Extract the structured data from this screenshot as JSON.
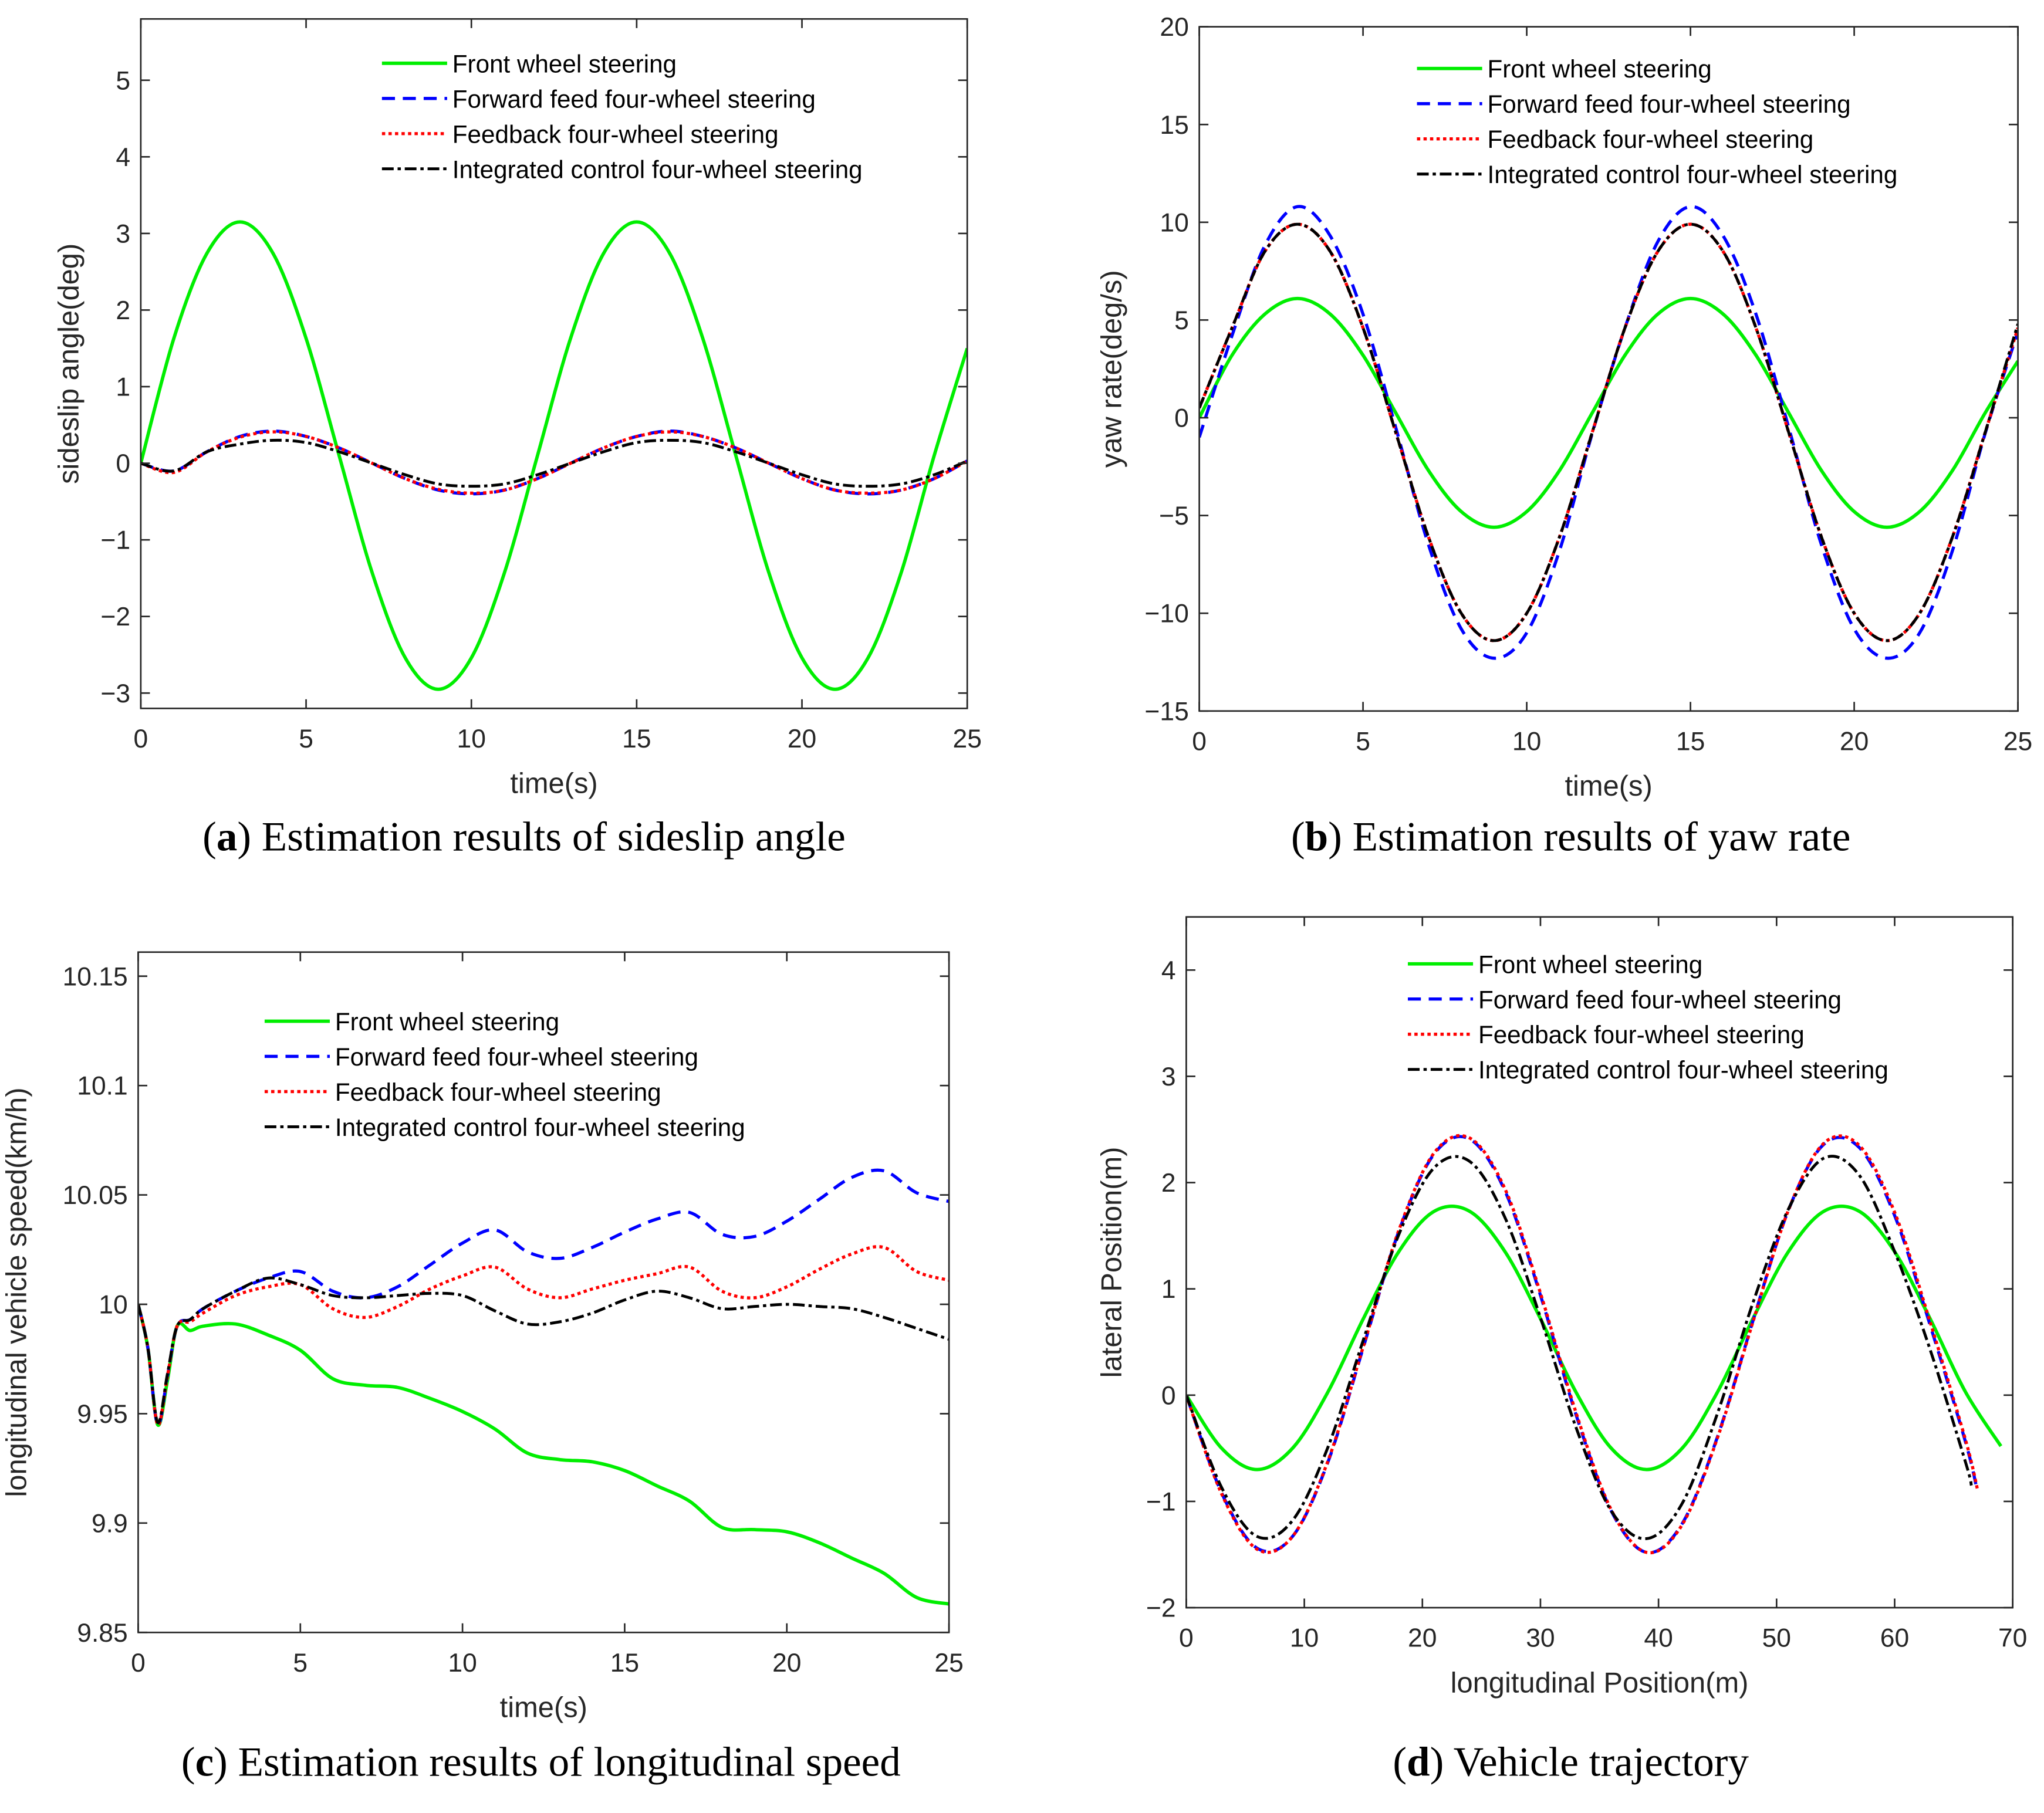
{
  "colors": {
    "front": "#00ee00",
    "forward": "#0000ff",
    "feedback": "#ff0000",
    "integrated": "#000000",
    "axis": "#262626"
  },
  "legend_labels": [
    "Front wheel steering",
    "Forward feed four-wheel steering",
    "Feedback four-wheel steering",
    "Integrated control four-wheel steering"
  ],
  "chart_data": [
    {
      "type": "line",
      "panel": "a",
      "caption_letter": "a",
      "caption": " Estimation results of sideslip angle",
      "xlabel": "time(s)",
      "ylabel": "sideslip angle(deg)",
      "xlim": [
        0,
        25
      ],
      "ylim": [
        -3.2,
        5.8
      ],
      "xticks": [
        0,
        5,
        10,
        15,
        20,
        25
      ],
      "xtick_labels": [
        "0",
        "5",
        "10",
        "15",
        "20",
        "25"
      ],
      "yticks": [
        -3,
        -2,
        -1,
        0,
        1,
        2,
        3,
        4,
        5
      ],
      "ytick_labels": [
        "−3",
        "−2",
        "−1",
        "0",
        "1",
        "2",
        "3",
        "4",
        "5"
      ],
      "legend": "top-right",
      "x": [
        0,
        1,
        2,
        3,
        4,
        5,
        6,
        7,
        8,
        9,
        10,
        11,
        12,
        13,
        14,
        15,
        16,
        17,
        18,
        19,
        20,
        21,
        22,
        23,
        24,
        25
      ],
      "series": [
        {
          "name": "Front wheel steering",
          "style": "solid",
          "values": [
            0,
            1.63,
            2.74,
            3.15,
            2.74,
            1.63,
            0.1,
            -1.43,
            -2.54,
            -2.95,
            -2.54,
            -1.43,
            0.1,
            1.63,
            2.74,
            3.15,
            2.74,
            1.63,
            0.1,
            -1.43,
            -2.54,
            -2.95,
            -2.54,
            -1.43,
            0.1,
            1.5
          ]
        },
        {
          "name": "Forward feed four-wheel steering",
          "style": "dashed",
          "values": [
            0,
            -0.1,
            0.15,
            0.35,
            0.42,
            0.35,
            0.2,
            0,
            -0.2,
            -0.35,
            -0.4,
            -0.35,
            -0.2,
            0,
            0.2,
            0.35,
            0.42,
            0.35,
            0.2,
            0,
            -0.2,
            -0.35,
            -0.4,
            -0.35,
            -0.2,
            0.03
          ]
        },
        {
          "name": "Feedback four-wheel steering",
          "style": "dotted",
          "values": [
            0,
            -0.12,
            0.15,
            0.34,
            0.41,
            0.35,
            0.2,
            0,
            -0.2,
            -0.34,
            -0.39,
            -0.35,
            -0.2,
            0,
            0.2,
            0.35,
            0.41,
            0.35,
            0.2,
            0,
            -0.2,
            -0.35,
            -0.39,
            -0.35,
            -0.2,
            0.03
          ]
        },
        {
          "name": "Integrated control four-wheel steering",
          "style": "dashdot",
          "values": [
            0,
            -0.1,
            0.15,
            0.25,
            0.3,
            0.27,
            0.15,
            0,
            -0.15,
            -0.27,
            -0.3,
            -0.27,
            -0.15,
            0,
            0.15,
            0.27,
            0.3,
            0.27,
            0.15,
            0,
            -0.15,
            -0.27,
            -0.3,
            -0.27,
            -0.15,
            0.03
          ]
        }
      ]
    },
    {
      "type": "line",
      "panel": "b",
      "caption_letter": "b",
      "caption": " Estimation results of yaw rate",
      "xlabel": "time(s)",
      "ylabel": "yaw rate(deg/s)",
      "xlim": [
        0,
        25
      ],
      "ylim": [
        -15,
        20
      ],
      "xticks": [
        0,
        5,
        10,
        15,
        20,
        25
      ],
      "xtick_labels": [
        "0",
        "5",
        "10",
        "15",
        "20",
        "25"
      ],
      "yticks": [
        -15,
        -10,
        -5,
        0,
        5,
        10,
        15,
        20
      ],
      "ytick_labels": [
        "−15",
        "−10",
        "−5",
        "0",
        "5",
        "10",
        "15",
        "20"
      ],
      "legend": "top-right",
      "x": [
        0,
        1,
        2,
        3,
        4,
        5,
        6,
        7,
        8,
        9,
        10,
        11,
        12,
        13,
        14,
        15,
        16,
        17,
        18,
        19,
        20,
        21,
        22,
        23,
        24,
        25
      ],
      "series": [
        {
          "name": "Front wheel steering",
          "style": "solid",
          "values": [
            0,
            3.2,
            5.3,
            6.1,
            5.3,
            3.2,
            0.25,
            -2.7,
            -4.8,
            -5.6,
            -4.8,
            -2.7,
            0.25,
            3.2,
            5.3,
            6.1,
            5.3,
            3.2,
            0.25,
            -2.7,
            -4.8,
            -5.6,
            -4.8,
            -2.7,
            0.25,
            2.9
          ]
        },
        {
          "name": "Forward feed four-wheel steering",
          "style": "dashed",
          "values": [
            -1.0,
            4.2,
            8.8,
            10.8,
            9.3,
            5.3,
            -0.5,
            -6.5,
            -10.8,
            -12.3,
            -11.0,
            -6.8,
            -0.8,
            4.6,
            9.0,
            10.8,
            9.3,
            5.3,
            -0.5,
            -6.5,
            -10.8,
            -12.3,
            -11.0,
            -6.8,
            -0.8,
            4.4
          ]
        },
        {
          "name": "Feedback four-wheel steering",
          "style": "dotted",
          "values": [
            0.5,
            4.6,
            8.5,
            9.9,
            8.5,
            4.6,
            -0.75,
            -6.1,
            -10.0,
            -11.4,
            -10.0,
            -6.1,
            -0.75,
            4.6,
            8.5,
            9.9,
            8.5,
            4.6,
            -0.75,
            -6.1,
            -10.0,
            -11.4,
            -10.0,
            -6.1,
            -0.75,
            4.6
          ]
        },
        {
          "name": "Integrated control four-wheel steering",
          "style": "dashdot",
          "values": [
            0.5,
            4.6,
            8.5,
            9.9,
            8.5,
            4.6,
            -0.75,
            -6.1,
            -10.0,
            -11.4,
            -10.0,
            -6.1,
            -0.75,
            4.6,
            8.5,
            9.9,
            8.5,
            4.6,
            -0.75,
            -6.1,
            -10.0,
            -11.4,
            -10.0,
            -6.1,
            -0.75,
            4.8
          ]
        }
      ]
    },
    {
      "type": "line",
      "panel": "c",
      "caption_letter": "c",
      "caption": " Estimation results of longitudinal speed",
      "xlabel": "time(s)",
      "ylabel": "longitudinal vehicle speed(km/h)",
      "xlim": [
        0,
        25
      ],
      "ylim": [
        9.85,
        10.161
      ],
      "xticks": [
        0,
        5,
        10,
        15,
        20,
        25
      ],
      "xtick_labels": [
        "0",
        "5",
        "10",
        "15",
        "20",
        "25"
      ],
      "yticks": [
        9.85,
        9.9,
        9.95,
        10,
        10.05,
        10.1,
        10.15
      ],
      "ytick_labels": [
        "9.85",
        "9.9",
        "9.95",
        "10",
        "10.05",
        "10.1",
        "10.15"
      ],
      "legend": "top-left",
      "x": [
        0,
        0.3,
        0.6,
        0.9,
        1.2,
        1.6,
        2,
        3,
        4,
        5,
        6,
        7,
        8,
        9,
        10,
        11,
        12,
        13,
        14,
        15,
        16,
        17,
        18,
        19,
        20,
        21,
        22,
        23,
        24,
        25
      ],
      "series": [
        {
          "name": "Front wheel steering",
          "style": "solid",
          "values": [
            10,
            9.98,
            9.945,
            9.965,
            9.99,
            9.988,
            9.99,
            9.991,
            9.986,
            9.979,
            9.966,
            9.963,
            9.962,
            9.957,
            9.951,
            9.943,
            9.932,
            9.929,
            9.928,
            9.924,
            9.917,
            9.91,
            9.898,
            9.897,
            9.896,
            9.891,
            9.884,
            9.877,
            9.866,
            9.863
          ]
        },
        {
          "name": "Forward feed four-wheel steering",
          "style": "dashed",
          "values": [
            10,
            9.98,
            9.945,
            9.967,
            9.99,
            9.993,
            9.998,
            10.006,
            10.012,
            10.015,
            10.006,
            10.003,
            10.008,
            10.018,
            10.028,
            10.034,
            10.024,
            10.021,
            10.026,
            10.033,
            10.039,
            10.042,
            10.032,
            10.031,
            10.038,
            10.048,
            10.058,
            10.061,
            10.051,
            10.047
          ]
        },
        {
          "name": "Feedback four-wheel steering",
          "style": "dotted",
          "values": [
            10,
            9.98,
            9.945,
            9.967,
            9.99,
            9.992,
            9.996,
            10.004,
            10.008,
            10.009,
            9.998,
            9.994,
            9.999,
            10.007,
            10.013,
            10.017,
            10.007,
            10.003,
            10.007,
            10.011,
            10.014,
            10.017,
            10.006,
            10.003,
            10.008,
            10.016,
            10.023,
            10.026,
            10.015,
            10.011
          ]
        },
        {
          "name": "Integrated control four-wheel steering",
          "style": "dashdot",
          "values": [
            10,
            9.98,
            9.946,
            9.968,
            9.99,
            9.993,
            9.998,
            10.006,
            10.012,
            10.009,
            10.004,
            10.003,
            10.004,
            10.005,
            10.004,
            9.997,
            9.991,
            9.992,
            9.996,
            10.002,
            10.006,
            10.003,
            9.998,
            9.999,
            10.0,
            9.999,
            9.998,
            9.994,
            9.989,
            9.984
          ]
        }
      ]
    },
    {
      "type": "line",
      "panel": "d",
      "caption_letter": "d",
      "caption": " Vehicle trajectory",
      "xlabel": "longitudinal Position(m)",
      "ylabel": "lateral Position(m)",
      "xlim": [
        0,
        70
      ],
      "ylim": [
        -2,
        4.5
      ],
      "xticks": [
        0,
        10,
        20,
        30,
        40,
        50,
        60,
        70
      ],
      "xtick_labels": [
        "0",
        "10",
        "20",
        "30",
        "40",
        "50",
        "60",
        "70"
      ],
      "yticks": [
        -2,
        -1,
        0,
        1,
        2,
        3,
        4
      ],
      "ytick_labels": [
        "−2",
        "−1",
        "0",
        "1",
        "2",
        "3",
        "4"
      ],
      "legend": "top-right",
      "series": [
        {
          "name": "Front wheel steering",
          "style": "solid",
          "x": [
            0,
            3,
            6,
            9,
            12,
            15,
            18,
            21,
            24,
            27,
            30,
            33,
            36,
            39,
            42,
            45,
            48,
            51,
            54,
            57,
            60,
            63,
            66,
            69
          ],
          "values": [
            0,
            -0.5,
            -0.7,
            -0.5,
            0.03,
            0.72,
            1.35,
            1.73,
            1.73,
            1.35,
            0.72,
            0.03,
            -0.5,
            -0.7,
            -0.5,
            0.03,
            0.72,
            1.35,
            1.73,
            1.73,
            1.35,
            0.72,
            0.03,
            -0.48
          ]
        },
        {
          "name": "Forward feed four-wheel steering",
          "style": "dashed",
          "x": [
            0,
            3,
            6,
            9,
            12,
            15,
            18,
            21,
            24,
            27,
            30,
            33,
            36,
            39,
            42,
            45,
            48,
            51,
            54,
            57,
            60,
            63,
            66,
            67
          ],
          "values": [
            0,
            -0.92,
            -1.44,
            -1.33,
            -0.63,
            0.45,
            1.54,
            2.27,
            2.41,
            1.92,
            0.94,
            -0.18,
            -1.09,
            -1.48,
            -1.21,
            -0.39,
            0.7,
            1.74,
            2.36,
            2.33,
            1.69,
            0.66,
            -0.44,
            -0.9
          ]
        },
        {
          "name": "Feedback four-wheel steering",
          "style": "dotted",
          "x": [
            0,
            3,
            6,
            9,
            12,
            15,
            18,
            21,
            24,
            27,
            30,
            33,
            36,
            39,
            42,
            45,
            48,
            51,
            54,
            57,
            60,
            63,
            66,
            67
          ],
          "values": [
            0,
            -0.93,
            -1.45,
            -1.33,
            -0.62,
            0.46,
            1.55,
            2.28,
            2.42,
            1.94,
            0.96,
            -0.16,
            -1.08,
            -1.48,
            -1.22,
            -0.4,
            0.69,
            1.74,
            2.37,
            2.35,
            1.72,
            0.69,
            -0.42,
            -0.88
          ]
        },
        {
          "name": "Integrated control four-wheel steering",
          "style": "dashdot",
          "x": [
            0,
            3,
            6,
            9,
            12,
            15,
            18,
            21,
            24,
            27,
            30,
            33,
            36,
            39,
            42,
            45,
            48,
            51,
            54,
            57,
            60,
            63,
            66,
            66.5
          ],
          "values": [
            0,
            -0.87,
            -1.33,
            -1.18,
            -0.49,
            0.52,
            1.51,
            2.14,
            2.2,
            1.67,
            0.73,
            -0.3,
            -1.09,
            -1.35,
            -1.02,
            -0.17,
            0.87,
            1.75,
            2.23,
            2.07,
            1.35,
            0.43,
            -0.63,
            -0.85
          ]
        }
      ]
    }
  ]
}
